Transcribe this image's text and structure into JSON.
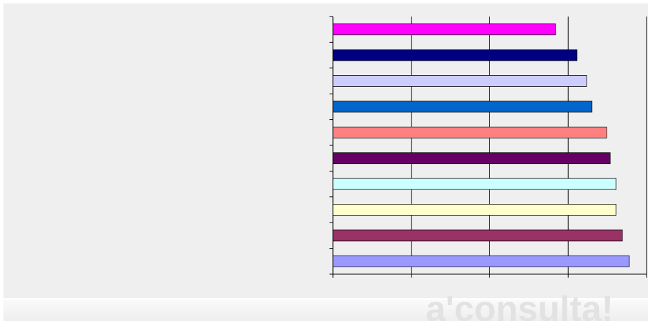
{
  "chart_data": {
    "type": "hbar",
    "categories": [
      null,
      null,
      null,
      null,
      null,
      null,
      null,
      null,
      null,
      null
    ],
    "values": [
      71.0,
      77.8,
      80.9,
      82.6,
      87.3,
      88.4,
      90.3,
      90.3,
      92.3,
      94.5
    ],
    "colors": [
      "#ff00ff",
      "#000080",
      "#ccccff",
      "#0066cc",
      "#ff8080",
      "#660066",
      "#ccffff",
      "#ffffcc",
      "#993366",
      "#9999ff"
    ],
    "xlim": [
      0,
      100
    ],
    "xticks": [
      0,
      25,
      50,
      75,
      100
    ],
    "grid": true
  },
  "watermark": "a'consulta!"
}
